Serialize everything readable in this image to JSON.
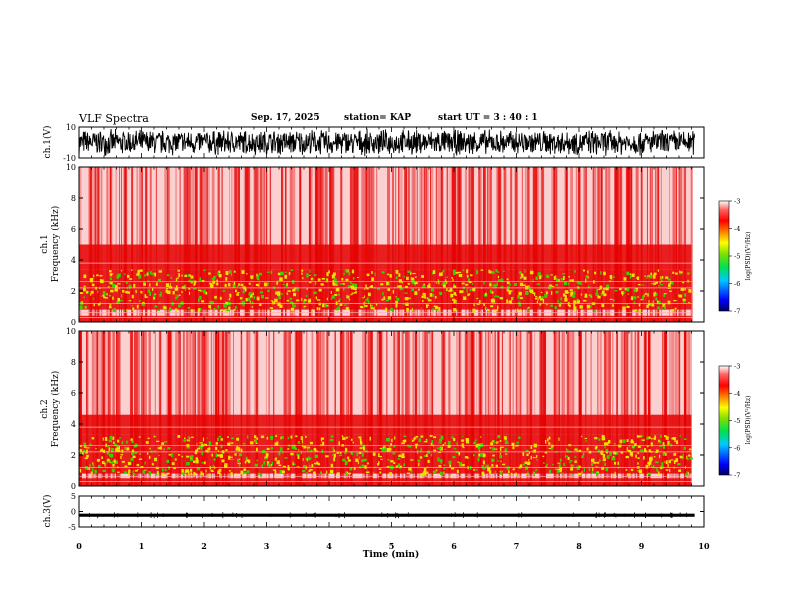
{
  "header": {
    "title": "VLF Spectra",
    "date": "Sep. 17, 2025",
    "station": "station= KAP",
    "start": "start  UT =   3 : 40 : 1"
  },
  "colors": {
    "background": "#ffffff",
    "axis": "#000000",
    "spectro_high": "#e50000",
    "spectro_mid": "#f0e000",
    "spectro_low": "#3cd000",
    "colorbar": [
      "#000060",
      "#0000ff",
      "#00c8ff",
      "#00e050",
      "#7fe000",
      "#ffff00",
      "#ff8000",
      "#ff0000",
      "#ff6060",
      "#ffffff"
    ]
  },
  "chart_data": [
    {
      "type": "line",
      "id": "ch1_waveform",
      "ylabel": "ch.1(V)",
      "ylim": [
        -10,
        10
      ],
      "yticks": [
        "10",
        "-10"
      ],
      "xlim": [
        0,
        10
      ],
      "description_values": "dense oscillating waveform, amplitude roughly -10 to 10 V",
      "envelope": [
        -9,
        9
      ]
    },
    {
      "type": "heatmap",
      "id": "ch1_spectrogram",
      "ylabel": "ch.1",
      "ylabel2": "Frequency (kHz)",
      "ylim": [
        0,
        10
      ],
      "yticks": [
        "0",
        "2",
        "4",
        "6",
        "8",
        "10"
      ],
      "xlim": [
        0,
        9.8
      ],
      "bands_khz": [
        {
          "from": 0.0,
          "to": 0.4,
          "level": "high"
        },
        {
          "from": 0.8,
          "to": 3.4,
          "level": "mid"
        },
        {
          "from": 3.4,
          "to": 5.0,
          "level": "high"
        }
      ],
      "colorbar": {
        "label": "log(PSD)(V²/Hz)",
        "ticks": [
          "-3",
          "-4",
          "-5",
          "-6",
          "-7"
        ],
        "range": [
          -7,
          -3
        ]
      }
    },
    {
      "type": "heatmap",
      "id": "ch2_spectrogram",
      "ylabel": "ch.2",
      "ylabel2": "Frequency (kHz)",
      "ylim": [
        0,
        10
      ],
      "yticks": [
        "0",
        "2",
        "4",
        "6",
        "8",
        "10"
      ],
      "xlim": [
        0,
        9.8
      ],
      "bands_khz": [
        {
          "from": 0.0,
          "to": 0.5,
          "level": "high"
        },
        {
          "from": 0.8,
          "to": 3.3,
          "level": "mid"
        },
        {
          "from": 3.3,
          "to": 4.6,
          "level": "high"
        }
      ],
      "colorbar": {
        "label": "log(PSD)(V²/Hz)",
        "ticks": [
          "-3",
          "-4",
          "-5",
          "-6",
          "-7"
        ],
        "range": [
          -7,
          -3
        ]
      }
    },
    {
      "type": "line",
      "id": "ch3_waveform",
      "ylabel": "ch.3(V)",
      "ylim": [
        -5,
        5
      ],
      "yticks": [
        "5",
        "0",
        "-5"
      ],
      "xlim": [
        0,
        10
      ],
      "level": -1.2,
      "envelope": [
        -1.7,
        -0.7
      ]
    }
  ],
  "xaxis": {
    "label": "Time (min)",
    "ticks": [
      "0",
      "1",
      "2",
      "3",
      "4",
      "5",
      "6",
      "7",
      "8",
      "9",
      "10"
    ],
    "range": [
      0,
      10
    ]
  }
}
